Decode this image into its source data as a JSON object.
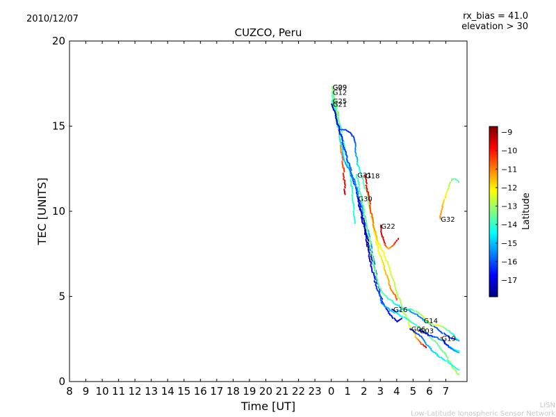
{
  "header": {
    "date": "2010/12/07",
    "rx_bias": "rx_bias = 41.0",
    "elevation": "elevation > 30"
  },
  "footer": {
    "line1": "LISN",
    "line2": "Low-Latitude Ionospheric Sensor Network"
  },
  "colors": {
    "colormap": [
      "#00007f",
      "#0000ff",
      "#007fff",
      "#00ffff",
      "#7fff7f",
      "#ffff00",
      "#ff7f00",
      "#ff0000",
      "#7f0000"
    ]
  },
  "chart_data": {
    "type": "scatter",
    "title": "CUZCO, Peru",
    "xlabel": "Time [UT]",
    "ylabel": "TEC [UNITS]",
    "x_ticks": [
      "8",
      "9",
      "10",
      "11",
      "12",
      "13",
      "14",
      "15",
      "16",
      "17",
      "18",
      "19",
      "20",
      "21",
      "22",
      "23",
      "0",
      "1",
      "2",
      "3",
      "4",
      "5",
      "6",
      "7"
    ],
    "y_ticks": [
      0,
      5,
      10,
      15,
      20
    ],
    "ylim": [
      0,
      20
    ],
    "xlim": [
      8,
      31.8
    ],
    "colorbar": {
      "label": "Latitude",
      "ticks": [
        -9,
        -10,
        -11,
        -12,
        -13,
        -14,
        -15,
        -16,
        -17
      ],
      "range": [
        -17.9,
        -8.7
      ]
    },
    "series": [
      {
        "name": "G29",
        "label_at": [
          24.05,
          17.3
        ],
        "points": [
          [
            24.05,
            17.3,
            -12.2
          ],
          [
            24.3,
            16.0,
            -11.8
          ],
          [
            24.55,
            14.2,
            -11.3
          ],
          [
            24.75,
            12.5,
            -10.3
          ],
          [
            24.85,
            11.0,
            -9.3
          ]
        ]
      },
      {
        "name": "G09",
        "label_at": [
          24.05,
          17.3
        ],
        "points": [
          [
            24.05,
            17.3,
            -13.4
          ],
          [
            24.4,
            15.8,
            -13.6
          ],
          [
            24.9,
            13.3,
            -13.8
          ],
          [
            25.2,
            12.0,
            -14.0
          ],
          [
            25.45,
            9.3,
            -14.2
          ]
        ]
      },
      {
        "name": "G12",
        "label_at": [
          24.05,
          17.0
        ],
        "points": [
          [
            24.05,
            17.0,
            -13.7
          ],
          [
            24.3,
            15.5,
            -14.0
          ],
          [
            24.8,
            13.0,
            -15.0
          ],
          [
            25.3,
            12.0,
            -16.0
          ],
          [
            25.6,
            11.0,
            -16.5
          ],
          [
            25.9,
            9.8,
            -17.0
          ],
          [
            26.3,
            8.0,
            -17.3
          ],
          [
            26.6,
            6.8,
            -17.6
          ]
        ]
      },
      {
        "name": "G25",
        "label_at": [
          24.05,
          16.5
        ],
        "points": [
          [
            24.05,
            16.5,
            -14.0
          ],
          [
            24.5,
            14.8,
            -15.8
          ],
          [
            24.9,
            14.8,
            -16.2
          ],
          [
            25.2,
            14.6,
            -16.4
          ],
          [
            25.4,
            14.3,
            -16.2
          ],
          [
            25.6,
            12.8,
            -14.8
          ],
          [
            25.8,
            12.2,
            -14.0
          ],
          [
            26.2,
            11.0,
            -13.4
          ],
          [
            26.5,
            9.5,
            -12.8
          ],
          [
            26.8,
            8.0,
            -12.3
          ],
          [
            27.2,
            6.8,
            -11.8
          ],
          [
            27.6,
            5.6,
            -11.2
          ],
          [
            28.0,
            4.8,
            -10.5
          ]
        ]
      },
      {
        "name": "G21",
        "label_at": [
          24.05,
          16.3
        ],
        "points": [
          [
            24.05,
            16.3,
            -17.6
          ],
          [
            24.5,
            14.8,
            -16.8
          ],
          [
            25.0,
            13.0,
            -16.0
          ],
          [
            25.5,
            11.5,
            -15.5
          ],
          [
            26.0,
            9.8,
            -15.2
          ],
          [
            26.4,
            8.2,
            -15.3
          ],
          [
            26.7,
            6.5,
            -15.6
          ],
          [
            27.0,
            5.0,
            -16.2
          ],
          [
            27.4,
            4.2,
            -16.6
          ],
          [
            28.0,
            3.5,
            -17.2
          ],
          [
            28.3,
            3.7,
            -17.0
          ]
        ]
      },
      {
        "name": "G31",
        "label_at": [
          25.55,
          12.15
        ],
        "points": [
          [
            25.55,
            12.15,
            -14.0
          ],
          [
            25.9,
            10.5,
            -13.6
          ],
          [
            26.3,
            8.5,
            -13.2
          ],
          [
            26.7,
            6.3,
            -13.2
          ],
          [
            27.1,
            5.2,
            -13.6
          ],
          [
            27.6,
            4.8,
            -14.0
          ],
          [
            28.0,
            4.5,
            -14.6
          ],
          [
            28.7,
            4.2,
            -15.2
          ],
          [
            29.3,
            3.9,
            -15.6
          ],
          [
            29.9,
            3.5,
            -15.9
          ],
          [
            30.6,
            3.0,
            -16.1
          ],
          [
            31.2,
            2.6,
            -16.3
          ],
          [
            31.8,
            2.4,
            -16.4
          ]
        ]
      },
      {
        "name": "G18",
        "label_at": [
          26.05,
          12.1
        ],
        "points": [
          [
            26.05,
            12.1,
            -9.5
          ],
          [
            26.3,
            10.8,
            -10.0
          ],
          [
            26.5,
            9.6,
            -10.8
          ],
          [
            26.7,
            8.7,
            -11.5
          ],
          [
            26.9,
            8.1,
            -12.0
          ],
          [
            27.2,
            7.6,
            -12.3
          ],
          [
            27.6,
            6.5,
            -12.5
          ],
          [
            28.0,
            5.3,
            -12.8
          ],
          [
            28.4,
            4.2,
            -13.0
          ],
          [
            28.8,
            3.3,
            -12.5
          ],
          [
            29.2,
            2.6,
            -11.5
          ],
          [
            29.5,
            2.2,
            -10.5
          ],
          [
            29.8,
            2.0,
            -9.6
          ]
        ]
      },
      {
        "name": "G30",
        "label_at": [
          25.6,
          10.75
        ],
        "points": [
          [
            25.6,
            10.75,
            -16.8
          ],
          [
            25.8,
            10.0,
            -17.2
          ],
          [
            26.1,
            8.6,
            -17.4
          ],
          [
            26.4,
            7.0,
            -17.1
          ],
          [
            26.7,
            5.8,
            -16.6
          ],
          [
            27.1,
            4.6,
            -15.6
          ],
          [
            27.6,
            4.2,
            -15.0
          ],
          [
            28.2,
            3.9,
            -14.5
          ],
          [
            28.9,
            3.5,
            -14.0
          ],
          [
            29.6,
            3.0,
            -13.6
          ],
          [
            30.3,
            2.4,
            -13.5
          ],
          [
            30.9,
            1.7,
            -13.5
          ],
          [
            31.2,
            1.2,
            -13.2
          ],
          [
            31.5,
            0.7,
            -13.0
          ],
          [
            31.8,
            0.4,
            -13.0
          ]
        ]
      },
      {
        "name": "G22",
        "label_at": [
          27.0,
          9.15
        ],
        "points": [
          [
            27.0,
            9.15,
            -9.2
          ],
          [
            27.2,
            8.2,
            -9.6
          ],
          [
            27.5,
            7.8,
            -11.5
          ],
          [
            27.8,
            8.0,
            -10.5
          ],
          [
            28.1,
            8.4,
            -9.4
          ]
        ]
      },
      {
        "name": "G32",
        "label_at": [
          30.65,
          9.55
        ],
        "points": [
          [
            30.65,
            9.55,
            -11.0
          ],
          [
            30.8,
            10.3,
            -11.5
          ],
          [
            31.0,
            10.9,
            -12.0
          ],
          [
            31.2,
            11.5,
            -12.8
          ],
          [
            31.4,
            11.9,
            -13.4
          ],
          [
            31.6,
            11.9,
            -13.6
          ],
          [
            31.8,
            11.7,
            -13.6
          ]
        ]
      },
      {
        "name": "G16",
        "label_at": [
          27.75,
          4.25
        ],
        "points": [
          [
            27.75,
            4.25,
            -17.4
          ],
          [
            28.0,
            4.1,
            -15.5
          ],
          [
            28.5,
            4.3,
            -14.4
          ],
          [
            29.0,
            4.2,
            -13.5
          ],
          [
            29.4,
            4.0,
            -13.0
          ],
          [
            29.8,
            3.6,
            -12.4
          ],
          [
            30.0,
            3.4,
            -12.2
          ]
        ]
      },
      {
        "name": "G14",
        "label_at": [
          29.6,
          3.6
        ],
        "points": [
          [
            29.6,
            3.6,
            -14.8
          ],
          [
            29.9,
            3.5,
            -13.6
          ],
          [
            30.2,
            3.3,
            -12.6
          ],
          [
            30.5,
            3.3,
            -12.2
          ],
          [
            30.8,
            3.2,
            -13.0
          ],
          [
            31.1,
            3.0,
            -13.6
          ],
          [
            31.4,
            2.8,
            -14.2
          ],
          [
            31.8,
            2.4,
            -14.8
          ]
        ]
      },
      {
        "name": "G06",
        "label_at": [
          28.85,
          3.1
        ],
        "points": [
          [
            28.85,
            3.1,
            -16.8
          ],
          [
            29.1,
            2.9,
            -16.3
          ],
          [
            29.5,
            2.6,
            -15.8
          ],
          [
            29.9,
            2.1,
            -15.2
          ],
          [
            30.3,
            1.7,
            -14.8
          ],
          [
            30.7,
            1.4,
            -14.6
          ],
          [
            31.1,
            1.2,
            -14.4
          ],
          [
            31.5,
            0.9,
            -14.2
          ],
          [
            31.8,
            0.7,
            -14.2
          ]
        ]
      },
      {
        "name": "G03",
        "label_at": [
          29.35,
          3.0
        ],
        "points": [
          [
            29.35,
            3.0,
            -17.5
          ],
          [
            29.6,
            2.9,
            -17.0
          ],
          [
            30.0,
            2.7,
            -16.5
          ],
          [
            30.4,
            2.6,
            -15.9
          ],
          [
            30.8,
            2.4,
            -15.4
          ],
          [
            31.2,
            2.1,
            -15.0
          ],
          [
            31.5,
            1.9,
            -14.6
          ],
          [
            31.8,
            1.8,
            -14.4
          ]
        ]
      },
      {
        "name": "G19",
        "label_at": [
          30.7,
          2.55
        ],
        "points": [
          [
            30.7,
            2.55,
            -9.3
          ],
          [
            30.85,
            2.4,
            -17.5
          ],
          [
            31.1,
            2.1,
            -16.5
          ],
          [
            31.4,
            1.9,
            -15.5
          ],
          [
            31.8,
            1.7,
            -15.0
          ]
        ]
      }
    ]
  }
}
